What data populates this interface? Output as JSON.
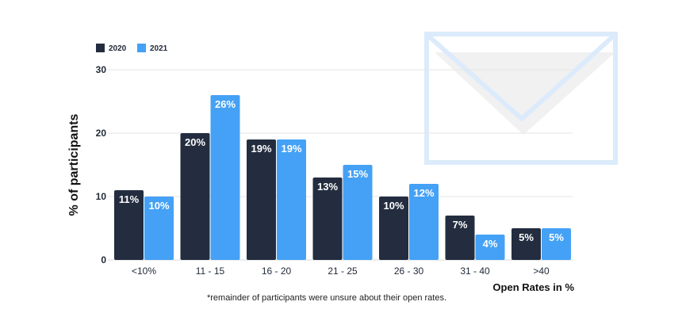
{
  "chart_data": {
    "type": "bar",
    "categories": [
      "<10%",
      "11 - 15",
      "16 - 20",
      "21 - 25",
      "26 - 30",
      "31 - 40",
      ">40"
    ],
    "series": [
      {
        "name": "2020",
        "color": "#232d3f",
        "values": [
          11,
          20,
          19,
          13,
          10,
          7,
          5
        ],
        "labels": [
          "11%",
          "20%",
          "19%",
          "13%",
          "10%",
          "7%",
          "5%"
        ]
      },
      {
        "name": "2021",
        "color": "#44a1f5",
        "values": [
          10,
          26,
          19,
          15,
          12,
          4,
          5
        ],
        "labels": [
          "10%",
          "26%",
          "19%",
          "15%",
          "12%",
          "4%",
          "5%"
        ]
      }
    ],
    "xlabel": "Open Rates in %",
    "ylabel": "% of participants",
    "ylim": [
      0,
      30
    ],
    "yticks": [
      0,
      10,
      20,
      30
    ],
    "grid": true,
    "legend_position": "top-left"
  },
  "footnote": "*remainder of participants were unsure about their open rates.",
  "decoration": {
    "icon": "envelope-icon",
    "color": "#dcebfb"
  }
}
